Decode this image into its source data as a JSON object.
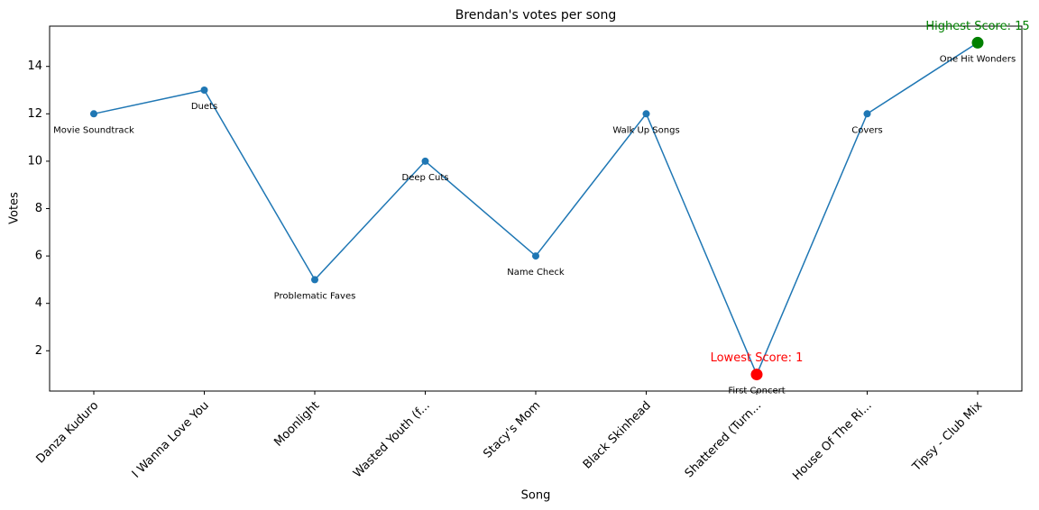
{
  "chart_data": {
    "type": "line",
    "title": "Brendan's votes per song",
    "x_label": "Song",
    "y_label": "Votes",
    "categories": [
      "Danza Kuduro",
      "I Wanna Love You",
      "Moonlight",
      "Wasted Youth (f...",
      "Stacy's Mom",
      "Black Skinhead",
      "Shattered (Turn...",
      "House Of The Ri...",
      "Tipsy - Club Mix"
    ],
    "series": [
      {
        "color": "#1f77b4",
        "values": [
          12,
          13,
          5,
          10,
          6,
          12,
          1,
          12,
          15
        ]
      }
    ],
    "point_labels": [
      "Movie Soundtrack",
      "Duets",
      "Problematic Faves",
      "Deep Cuts",
      "Name Check",
      "Walk Up Songs",
      "First Concert",
      "Covers",
      "One Hit Wonders"
    ],
    "annotations": {
      "highest": {
        "text": "Highest Score: 15",
        "color": "green"
      },
      "lowest": {
        "text": "Lowest Score: 1",
        "color": "red"
      }
    },
    "ylim": [
      0.3,
      15.7
    ],
    "yticks": [
      2,
      4,
      6,
      8,
      10,
      12,
      14
    ]
  }
}
